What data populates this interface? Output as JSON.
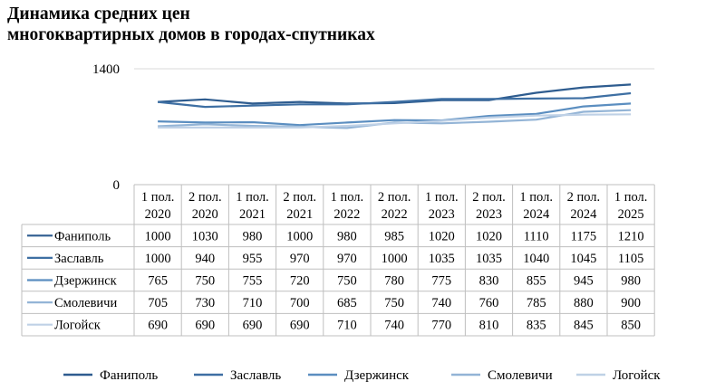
{
  "chart_data": {
    "type": "line",
    "title_lines": [
      "Динамика средних цен",
      "многоквартирных домов в городах-спутниках"
    ],
    "ylim": [
      0,
      1400
    ],
    "y_ticks": [
      "0",
      "1400"
    ],
    "categories": [
      [
        "1 пол.",
        "2020"
      ],
      [
        "2 пол.",
        "2020"
      ],
      [
        "1 пол.",
        "2021"
      ],
      [
        "2 пол.",
        "2021"
      ],
      [
        "1 пол.",
        "2022"
      ],
      [
        "2 пол.",
        "2022"
      ],
      [
        "1 пол.",
        "2023"
      ],
      [
        "2 пол.",
        "2023"
      ],
      [
        "1 пол.",
        "2024"
      ],
      [
        "2 пол.",
        "2024"
      ],
      [
        "1 пол.",
        "2025"
      ]
    ],
    "series": [
      {
        "name": "Фаниполь",
        "color": "#2e5c8f",
        "values": [
          1000,
          1030,
          980,
          1000,
          980,
          985,
          1020,
          1020,
          1110,
          1175,
          1210
        ]
      },
      {
        "name": "Заславль",
        "color": "#3e6fa3",
        "values": [
          1000,
          940,
          955,
          970,
          970,
          1000,
          1035,
          1035,
          1040,
          1045,
          1105
        ]
      },
      {
        "name": "Дзержинск",
        "color": "#5b8ec0",
        "values": [
          765,
          750,
          755,
          720,
          750,
          780,
          775,
          830,
          855,
          945,
          980
        ]
      },
      {
        "name": "Смолевичи",
        "color": "#93b4d6",
        "values": [
          705,
          730,
          710,
          700,
          685,
          750,
          740,
          760,
          785,
          880,
          900
        ]
      },
      {
        "name": "Логойск",
        "color": "#bfd1e6",
        "values": [
          690,
          690,
          690,
          690,
          710,
          740,
          770,
          810,
          835,
          845,
          850
        ]
      }
    ],
    "grid": false,
    "legend_position": "bottom",
    "data_table": true
  }
}
